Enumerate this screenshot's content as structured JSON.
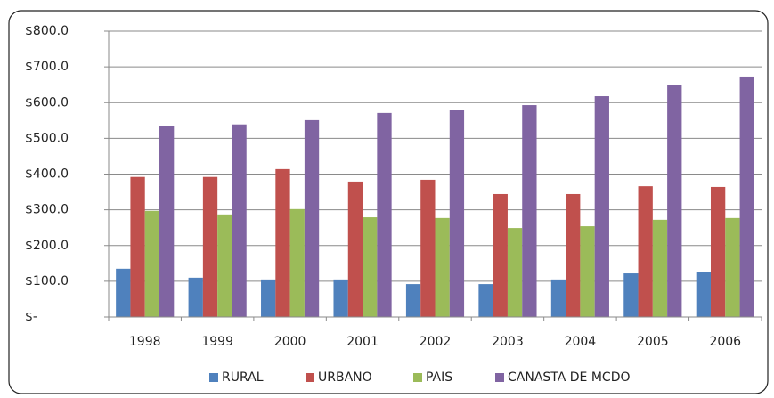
{
  "chart_data": {
    "type": "bar",
    "categories": [
      "1998",
      "1999",
      "2000",
      "2001",
      "2002",
      "2003",
      "2004",
      "2005",
      "2006"
    ],
    "series": [
      {
        "name": "RURAL",
        "color": "#4f81bd",
        "values": [
          135,
          110,
          105,
          105,
          92,
          92,
          105,
          122,
          125
        ]
      },
      {
        "name": "URBANO",
        "color": "#c0504d",
        "values": [
          392,
          392,
          414,
          379,
          384,
          344,
          344,
          366,
          364
        ]
      },
      {
        "name": "PAIS",
        "color": "#9bbb59",
        "values": [
          297,
          287,
          302,
          279,
          277,
          249,
          254,
          272,
          277
        ]
      },
      {
        "name": "CANASTA DE MCDO",
        "color": "#8064a2",
        "values": [
          534,
          539,
          551,
          571,
          579,
          593,
          618,
          648,
          673
        ]
      }
    ],
    "ylim": [
      0,
      800
    ],
    "yticks": [
      {
        "value": 0,
        "label": "$-"
      },
      {
        "value": 100,
        "label": "$100.0"
      },
      {
        "value": 200,
        "label": "$200.0"
      },
      {
        "value": 300,
        "label": "$300.0"
      },
      {
        "value": 400,
        "label": "$400.0"
      },
      {
        "value": 500,
        "label": "$500.0"
      },
      {
        "value": 600,
        "label": "$600.0"
      },
      {
        "value": 700,
        "label": "$700.0"
      },
      {
        "value": 800,
        "label": "$800.0"
      }
    ],
    "grid": true,
    "legend": "bottom"
  }
}
